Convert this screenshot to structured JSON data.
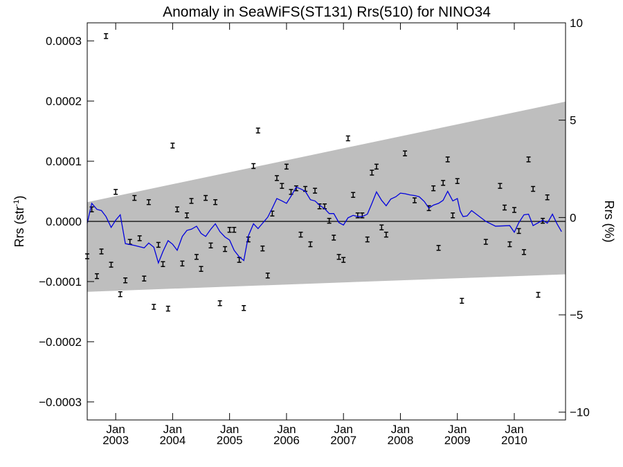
{
  "chart_data": {
    "type": "line",
    "title": "Anomaly in SeaWiFS(ST131) Rrs(510) for NINO34",
    "ylabel_left": {
      "base": "Rrs (str",
      "sup": "-1",
      "end": ")"
    },
    "ylabel_right": "Rrs (%)",
    "xlim": [
      2002.5,
      2010.9
    ],
    "ylim_left": [
      -0.00033,
      0.00033
    ],
    "ylim_right": [
      -10.4,
      10.0
    ],
    "zero_line": 0,
    "x_ticks": [
      {
        "value": 2003.0,
        "top": "Jan",
        "bottom": "2003"
      },
      {
        "value": 2004.0,
        "top": "Jan",
        "bottom": "2004"
      },
      {
        "value": 2005.0,
        "top": "Jan",
        "bottom": "2005"
      },
      {
        "value": 2006.0,
        "top": "Jan",
        "bottom": "2006"
      },
      {
        "value": 2007.0,
        "top": "Jan",
        "bottom": "2007"
      },
      {
        "value": 2008.0,
        "top": "Jan",
        "bottom": "2008"
      },
      {
        "value": 2009.0,
        "top": "Jan",
        "bottom": "2009"
      },
      {
        "value": 2010.0,
        "top": "Jan",
        "bottom": "2010"
      }
    ],
    "y_ticks_left": [
      {
        "value": 0.0003,
        "label": "0.0003"
      },
      {
        "value": 0.0002,
        "label": "0.0002"
      },
      {
        "value": 0.0001,
        "label": "0.0001"
      },
      {
        "value": 0.0,
        "label": "0.0000"
      },
      {
        "value": -0.0001,
        "label": "−0.0001"
      },
      {
        "value": -0.0002,
        "label": "−0.0002"
      },
      {
        "value": -0.0003,
        "label": "−0.0003"
      }
    ],
    "y_ticks_right": [
      {
        "value": 10,
        "label": "10"
      },
      {
        "value": 5,
        "label": "5"
      },
      {
        "value": 0,
        "label": "0"
      },
      {
        "value": -5,
        "label": "−5"
      },
      {
        "value": -10,
        "label": "−10"
      }
    ],
    "band": {
      "color": "#bebebe",
      "upper": [
        [
          2002.5,
          3.2e-05
        ],
        [
          2010.9,
          0.000199
        ]
      ],
      "lower": [
        [
          2002.5,
          -0.000117
        ],
        [
          2010.9,
          -8.8e-05
        ]
      ]
    },
    "series": [
      {
        "color": "#0000dd",
        "points": [
          [
            2002.5,
            -3e-06
          ],
          [
            2002.58,
            3e-05
          ],
          [
            2002.67,
            2e-05
          ],
          [
            2002.75,
            1.8e-05
          ],
          [
            2002.83,
            8e-06
          ],
          [
            2002.92,
            -1e-05
          ],
          [
            2003.0,
            2e-06
          ],
          [
            2003.08,
            1.1e-05
          ],
          [
            2003.17,
            -3.7e-05
          ],
          [
            2003.33,
            -4e-05
          ],
          [
            2003.5,
            -4.4e-05
          ],
          [
            2003.58,
            -3.6e-05
          ],
          [
            2003.67,
            -4.3e-05
          ],
          [
            2003.75,
            -6.9e-05
          ],
          [
            2003.83,
            -5e-05
          ],
          [
            2003.92,
            -3.2e-05
          ],
          [
            2004.0,
            -3.8e-05
          ],
          [
            2004.08,
            -4.8e-05
          ],
          [
            2004.17,
            -2.5e-05
          ],
          [
            2004.25,
            -1.5e-05
          ],
          [
            2004.33,
            -1.3e-05
          ],
          [
            2004.42,
            -8e-06
          ],
          [
            2004.5,
            -2e-05
          ],
          [
            2004.58,
            -2.5e-05
          ],
          [
            2004.67,
            -1.3e-05
          ],
          [
            2004.75,
            -4e-06
          ],
          [
            2004.83,
            -1.7e-05
          ],
          [
            2004.92,
            -2.6e-05
          ],
          [
            2005.0,
            -3.1e-05
          ],
          [
            2005.08,
            -4.8e-05
          ],
          [
            2005.17,
            -5.9e-05
          ],
          [
            2005.25,
            -6.5e-05
          ],
          [
            2005.33,
            -2.4e-05
          ],
          [
            2005.42,
            -4e-06
          ],
          [
            2005.5,
            -1.2e-05
          ],
          [
            2005.58,
            -3e-06
          ],
          [
            2005.67,
            7e-06
          ],
          [
            2005.75,
            2.2e-05
          ],
          [
            2005.83,
            3.8e-05
          ],
          [
            2005.92,
            3.4e-05
          ],
          [
            2006.0,
            3e-05
          ],
          [
            2006.08,
            4.2e-05
          ],
          [
            2006.17,
            5.7e-05
          ],
          [
            2006.25,
            5.4e-05
          ],
          [
            2006.33,
            5e-05
          ],
          [
            2006.42,
            3.6e-05
          ],
          [
            2006.5,
            3.4e-05
          ],
          [
            2006.58,
            2.7e-05
          ],
          [
            2006.67,
            2.1e-05
          ],
          [
            2006.75,
            1.3e-05
          ],
          [
            2006.83,
            1.3e-05
          ],
          [
            2006.92,
            -2e-06
          ],
          [
            2007.0,
            -6e-06
          ],
          [
            2007.08,
            6e-06
          ],
          [
            2007.17,
            1e-05
          ],
          [
            2007.25,
            8e-06
          ],
          [
            2007.33,
            8e-06
          ],
          [
            2007.42,
            1.2e-05
          ],
          [
            2007.5,
            3e-05
          ],
          [
            2007.58,
            4.9e-05
          ],
          [
            2007.67,
            3.5e-05
          ],
          [
            2007.75,
            2.6e-05
          ],
          [
            2007.83,
            3.7e-05
          ],
          [
            2007.92,
            4.1e-05
          ],
          [
            2008.0,
            4.7e-05
          ],
          [
            2008.08,
            4.6e-05
          ],
          [
            2008.17,
            4.4e-05
          ],
          [
            2008.25,
            4.3e-05
          ],
          [
            2008.33,
            4.1e-05
          ],
          [
            2008.42,
            3.3e-05
          ],
          [
            2008.5,
            2.2e-05
          ],
          [
            2008.58,
            2.7e-05
          ],
          [
            2008.67,
            3e-05
          ],
          [
            2008.75,
            3.5e-05
          ],
          [
            2008.83,
            5e-05
          ],
          [
            2008.92,
            3.4e-05
          ],
          [
            2009.0,
            3.8e-05
          ],
          [
            2009.05,
            1.7e-05
          ],
          [
            2009.1,
            8e-06
          ],
          [
            2009.17,
            9e-06
          ],
          [
            2009.25,
            1.8e-05
          ],
          [
            2009.5,
            0.0
          ],
          [
            2009.67,
            -8e-06
          ],
          [
            2009.92,
            -7e-06
          ],
          [
            2010.0,
            -1.8e-05
          ],
          [
            2010.08,
            -2e-06
          ],
          [
            2010.17,
            1.1e-05
          ],
          [
            2010.25,
            1.2e-05
          ],
          [
            2010.33,
            -7e-06
          ],
          [
            2010.5,
            2e-06
          ],
          [
            2010.58,
            -3e-06
          ],
          [
            2010.67,
            1.2e-05
          ],
          [
            2010.75,
            -4e-06
          ],
          [
            2010.83,
            -1.7e-05
          ]
        ]
      }
    ],
    "points": [
      [
        2002.5,
        -5.8e-05
      ],
      [
        2002.58,
        2e-05
      ],
      [
        2002.67,
        -9.1e-05
      ],
      [
        2002.75,
        -5e-05
      ],
      [
        2002.83,
        0.000308
      ],
      [
        2002.92,
        -7.2e-05
      ],
      [
        2003.0,
        4.9e-05
      ],
      [
        2003.08,
        -0.000121
      ],
      [
        2003.17,
        -9.8e-05
      ],
      [
        2003.25,
        -3.4e-05
      ],
      [
        2003.33,
        3.9e-05
      ],
      [
        2003.42,
        -2.8e-05
      ],
      [
        2003.5,
        -9.5e-05
      ],
      [
        2003.58,
        3.2e-05
      ],
      [
        2003.67,
        -0.000142
      ],
      [
        2003.75,
        -3.9e-05
      ],
      [
        2003.83,
        -7.1e-05
      ],
      [
        2003.92,
        -0.000145
      ],
      [
        2004.0,
        0.000126
      ],
      [
        2004.08,
        2e-05
      ],
      [
        2004.17,
        -7e-05
      ],
      [
        2004.25,
        1e-05
      ],
      [
        2004.33,
        3.4e-05
      ],
      [
        2004.42,
        -5.9e-05
      ],
      [
        2004.5,
        -7.9e-05
      ],
      [
        2004.58,
        3.9e-05
      ],
      [
        2004.67,
        -4e-05
      ],
      [
        2004.75,
        3.2e-05
      ],
      [
        2004.83,
        -0.000136
      ],
      [
        2004.92,
        -4.6e-05
      ],
      [
        2005.0,
        -1.4e-05
      ],
      [
        2005.08,
        -1.4e-05
      ],
      [
        2005.17,
        -6.4e-05
      ],
      [
        2005.25,
        -0.000144
      ],
      [
        2005.33,
        -3e-05
      ],
      [
        2005.42,
        9.2e-05
      ],
      [
        2005.5,
        0.000151
      ],
      [
        2005.58,
        -4.5e-05
      ],
      [
        2005.67,
        -9e-05
      ],
      [
        2005.75,
        1.3e-05
      ],
      [
        2005.83,
        7.2e-05
      ],
      [
        2005.92,
        5.9e-05
      ],
      [
        2006.0,
        9.1e-05
      ],
      [
        2006.08,
        4.9e-05
      ],
      [
        2006.17,
        5.5e-05
      ],
      [
        2006.25,
        -2.2e-05
      ],
      [
        2006.33,
        5.4e-05
      ],
      [
        2006.42,
        -3.8e-05
      ],
      [
        2006.5,
        5.1e-05
      ],
      [
        2006.58,
        2.5e-05
      ],
      [
        2006.67,
        2.5e-05
      ],
      [
        2006.75,
        1e-06
      ],
      [
        2006.83,
        -2.7e-05
      ],
      [
        2006.92,
        -5.9e-05
      ],
      [
        2007.0,
        -6.4e-05
      ],
      [
        2007.08,
        0.000138
      ],
      [
        2007.17,
        4.4e-05
      ],
      [
        2007.25,
        1e-05
      ],
      [
        2007.33,
        1e-05
      ],
      [
        2007.42,
        -3e-05
      ],
      [
        2007.5,
        8.1e-05
      ],
      [
        2007.58,
        9.1e-05
      ],
      [
        2007.67,
        -1e-05
      ],
      [
        2007.75,
        -2.2e-05
      ],
      [
        2008.08,
        0.000113
      ],
      [
        2008.25,
        3.5e-05
      ],
      [
        2008.5,
        2.2e-05
      ],
      [
        2008.58,
        5.5e-05
      ],
      [
        2008.67,
        -4.4e-05
      ],
      [
        2008.75,
        6.4e-05
      ],
      [
        2008.83,
        0.000103
      ],
      [
        2008.92,
        1e-05
      ],
      [
        2009.0,
        6.7e-05
      ],
      [
        2009.08,
        -0.000132
      ],
      [
        2009.5,
        -3.4e-05
      ],
      [
        2009.75,
        5.9e-05
      ],
      [
        2009.83,
        2.3e-05
      ],
      [
        2009.92,
        -3.8e-05
      ],
      [
        2010.0,
        1.9e-05
      ],
      [
        2010.08,
        -1.6e-05
      ],
      [
        2010.17,
        -5.1e-05
      ],
      [
        2010.25,
        0.000103
      ],
      [
        2010.33,
        5.4e-05
      ],
      [
        2010.42,
        -0.000122
      ],
      [
        2010.5,
        1e-06
      ],
      [
        2010.58,
        4e-05
      ]
    ],
    "point_color": "#000000",
    "point_error": 4e-06
  }
}
